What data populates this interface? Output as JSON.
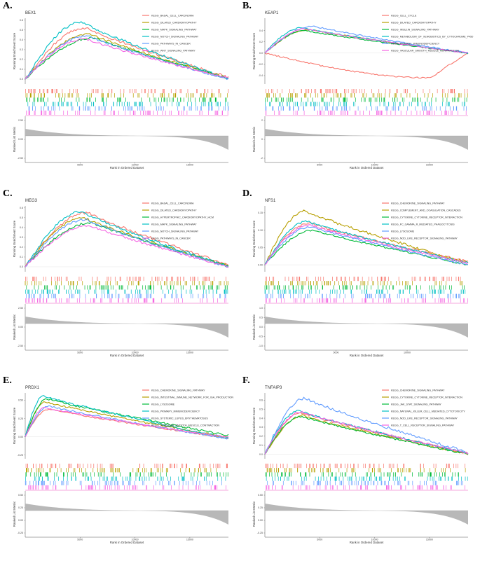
{
  "chart_data": [
    {
      "panel_label": "A.",
      "gene": "BEX1",
      "type": "line",
      "title": "BEX1",
      "ylabel": "Running Enrichment Score",
      "xlabel": "Rank in Ordered Dataset",
      "ylabel_bottom": "Ranked List Metric",
      "ylim": [
        -0.05,
        0.62
      ],
      "y_ticks": [
        "0.6",
        "0.5",
        "0.4",
        "0.3",
        "0.2",
        "0.1",
        "0.0"
      ],
      "metric_ticks": [
        "2.50",
        "0.00",
        "-2.50"
      ],
      "x_ticks": [
        "5000",
        "10000",
        "15000"
      ],
      "series": [
        {
          "name": "KEGG_BASAL_CELL_CARCINOMA",
          "color": "#f8766d",
          "peak": 0.52,
          "peak_x": 0.3,
          "end": 0.02
        },
        {
          "name": "KEGG_DILATED_CARDIOMYOPATHY",
          "color": "#b79f00",
          "peak": 0.46,
          "peak_x": 0.32,
          "end": 0.01
        },
        {
          "name": "KEGG_MAPK_SIGNALING_PATHWAY",
          "color": "#00ba38",
          "peak": 0.42,
          "peak_x": 0.34,
          "end": 0.01
        },
        {
          "name": "KEGG_NOTCH_SIGNALING_PATHWAY",
          "color": "#00bfc4",
          "peak": 0.58,
          "peak_x": 0.28,
          "end": 0.0
        },
        {
          "name": "KEGG_PATHWAYS_IN_CANCER",
          "color": "#619cff",
          "peak": 0.44,
          "peak_x": 0.31,
          "end": 0.0
        },
        {
          "name": "KEGG_WNT_SIGNALING_PATHWAY",
          "color": "#f564e3",
          "peak": 0.41,
          "peak_x": 0.3,
          "end": 0.01
        }
      ]
    },
    {
      "panel_label": "B.",
      "gene": "KEAP1",
      "type": "line",
      "title": "KEAP1",
      "ylabel": "Running Enrichment Score",
      "xlabel": "Rank in Ordered Dataset",
      "ylabel_bottom": "Ranked List Metric",
      "ylim": [
        -0.55,
        0.62
      ],
      "y_ticks": [
        "0.4",
        "0.2",
        "0.0",
        "-0.2",
        "-0.4"
      ],
      "metric_ticks": [
        "2",
        "0",
        "-2"
      ],
      "x_ticks": [
        "5000",
        "10000",
        "15000"
      ],
      "series": [
        {
          "name": "KEGG_CELL_CYCLE",
          "color": "#f8766d",
          "peak": -0.44,
          "peak_x": 0.82,
          "end": 0.0
        },
        {
          "name": "KEGG_DILATED_CARDIOMYOPATHY",
          "color": "#b79f00",
          "peak": 0.42,
          "peak_x": 0.22,
          "end": 0.0
        },
        {
          "name": "KEGG_INSULIN_SIGNALING_PATHWAY",
          "color": "#00ba38",
          "peak": 0.4,
          "peak_x": 0.2,
          "end": 0.0
        },
        {
          "name": "KEGG_METABOLISM_OF_XENOBIOTICS_BY_CYTOCHROME_P450",
          "color": "#00bfc4",
          "peak": 0.45,
          "peak_x": 0.18,
          "end": 0.0
        },
        {
          "name": "KEGG_PRIMARY_IMMUNODEFICIENCY",
          "color": "#619cff",
          "peak": 0.48,
          "peak_x": 0.24,
          "end": 0.0
        },
        {
          "name": "KEGG_VASCULAR_SMOOTH_MUSCLE_CONTRACTION",
          "color": "#f564e3",
          "peak": 0.43,
          "peak_x": 0.2,
          "end": 0.0
        }
      ]
    },
    {
      "panel_label": "C.",
      "gene": "MEG3",
      "type": "line",
      "title": "MEG3",
      "ylabel": "Running Enrichment Score",
      "xlabel": "Rank in Ordered Dataset",
      "ylabel_bottom": "Ranked List Metric",
      "ylim": [
        -0.05,
        0.62
      ],
      "y_ticks": [
        "0.6",
        "0.5",
        "0.4",
        "0.3",
        "0.2",
        "0.1",
        "0.0"
      ],
      "metric_ticks": [
        "2.50",
        "0.00",
        "-2.50"
      ],
      "x_ticks": [
        "5000",
        "10000",
        "15000"
      ],
      "series": [
        {
          "name": "KEGG_BASAL_CELL_CARCINOMA",
          "color": "#f8766d",
          "peak": 0.55,
          "peak_x": 0.31,
          "end": 0.02
        },
        {
          "name": "KEGG_DILATED_CARDIOMYOPATHY",
          "color": "#b79f00",
          "peak": 0.5,
          "peak_x": 0.29,
          "end": 0.01
        },
        {
          "name": "KEGG_HYPERTROPHIC_CARDIOMYOPATHY_HCM",
          "color": "#00ba38",
          "peak": 0.45,
          "peak_x": 0.33,
          "end": 0.01
        },
        {
          "name": "KEGG_MAPK_SIGNALING_PATHWAY",
          "color": "#00bfc4",
          "peak": 0.56,
          "peak_x": 0.28,
          "end": 0.0
        },
        {
          "name": "KEGG_NOTCH_SIGNALING_PATHWAY",
          "color": "#619cff",
          "peak": 0.48,
          "peak_x": 0.3,
          "end": 0.0
        },
        {
          "name": "KEGG_PATHWAYS_IN_CANCER",
          "color": "#f564e3",
          "peak": 0.42,
          "peak_x": 0.32,
          "end": 0.0
        }
      ]
    },
    {
      "panel_label": "D.",
      "gene": "NFS1",
      "type": "line",
      "title": "NFS1",
      "ylabel": "Running Enrichment Score",
      "xlabel": "Rank in Ordered Dataset",
      "ylabel_bottom": "Ranked List Metric",
      "ylim": [
        -0.02,
        0.17
      ],
      "y_ticks": [
        "0.15",
        "0.10",
        "0.05",
        "0.00"
      ],
      "metric_ticks": [
        "1.0",
        "0.5",
        "0.0",
        "-0.5",
        "-1.0"
      ],
      "x_ticks": [
        "5000",
        "10000"
      ],
      "series": [
        {
          "name": "KEGG_CHEMOKINE_SIGNALING_PATHWAY",
          "color": "#f8766d",
          "peak": 0.12,
          "peak_x": 0.22,
          "end": 0.01
        },
        {
          "name": "KEGG_COMPLEMENT_AND_COAGULATION_CASCADES",
          "color": "#b79f00",
          "peak": 0.155,
          "peak_x": 0.2,
          "end": 0.005
        },
        {
          "name": "KEGG_CYTOKINE_CYTOKINE_RECEPTOR_INTERACTION",
          "color": "#00ba38",
          "peak": 0.1,
          "peak_x": 0.24,
          "end": 0.0
        },
        {
          "name": "KEGG_FC_GAMMA_R_MEDIATED_PHAGOCYTOSIS",
          "color": "#00bfc4",
          "peak": 0.125,
          "peak_x": 0.21,
          "end": 0.005
        },
        {
          "name": "KEGG_LYSOSOME",
          "color": "#619cff",
          "peak": 0.11,
          "peak_x": 0.23,
          "end": 0.0
        },
        {
          "name": "KEGG_NOD_LIKE_RECEPTOR_SIGNALING_PATHWAY",
          "color": "#f564e3",
          "peak": 0.115,
          "peak_x": 0.22,
          "end": 0.005
        }
      ]
    },
    {
      "panel_label": "E.",
      "gene": "PRDX1",
      "type": "line",
      "title": "PRDX1",
      "ylabel": "Running Enrichment Score",
      "xlabel": "Rank in Ordered Dataset",
      "ylabel_bottom": "Ranked List Metric",
      "ylim": [
        -0.3,
        0.6
      ],
      "y_ticks": [
        "0.50",
        "0.25",
        "0.00",
        "-0.25"
      ],
      "metric_ticks": [
        "0.50",
        "0.25",
        "0.00",
        "-0.25"
      ],
      "x_ticks": [
        "5000",
        "10000",
        "15000"
      ],
      "series": [
        {
          "name": "KEGG_CHEMOKINE_SIGNALING_PATHWAY",
          "color": "#f8766d",
          "peak": 0.38,
          "peak_x": 0.12,
          "end": -0.02
        },
        {
          "name": "KEGG_INTESTINAL_IMMUNE_NETWORK_FOR_IGA_PRODUCTION",
          "color": "#b79f00",
          "peak": 0.48,
          "peak_x": 0.1,
          "end": -0.01
        },
        {
          "name": "KEGG_LYSOSOME",
          "color": "#00ba38",
          "peak": 0.52,
          "peak_x": 0.11,
          "end": 0.02
        },
        {
          "name": "KEGG_PRIMARY_IMMUNODEFICIENCY",
          "color": "#00bfc4",
          "peak": 0.56,
          "peak_x": 0.09,
          "end": -0.02
        },
        {
          "name": "KEGG_SYSTEMIC_LUPUS_ERYTHEMATOSUS",
          "color": "#619cff",
          "peak": 0.42,
          "peak_x": 0.12,
          "end": -0.03
        },
        {
          "name": "KEGG_VASCULAR_SMOOTH_MUSCLE_CONTRACTION",
          "color": "#f564e3",
          "peak": 0.4,
          "peak_x": 0.1,
          "end": -0.01
        }
      ]
    },
    {
      "panel_label": "F.",
      "gene": "TNFAIP3",
      "type": "line",
      "title": "TNFAIP3",
      "ylabel": "Running Enrichment Score",
      "xlabel": "Rank in Ordered Dataset",
      "ylabel_bottom": "Ranked List Metric",
      "ylim": [
        -0.05,
        0.68
      ],
      "y_ticks": [
        "0.6",
        "0.5",
        "0.4",
        "0.3",
        "0.2",
        "0.1",
        "0.0"
      ],
      "metric_ticks": [
        "0.50",
        "0.25",
        "0.00",
        "-0.25"
      ],
      "x_ticks": [
        "5000",
        "10000",
        "15000"
      ],
      "series": [
        {
          "name": "KEGG_CHEMOKINE_SIGNALING_PATHWAY",
          "color": "#f8766d",
          "peak": 0.46,
          "peak_x": 0.18,
          "end": 0.01
        },
        {
          "name": "KEGG_CYTOKINE_CYTOKINE_RECEPTOR_INTERACTION",
          "color": "#b79f00",
          "peak": 0.43,
          "peak_x": 0.19,
          "end": 0.0
        },
        {
          "name": "KEGG_JAK_STAT_SIGNALING_PATHWAY",
          "color": "#00ba38",
          "peak": 0.42,
          "peak_x": 0.18,
          "end": 0.0
        },
        {
          "name": "KEGG_NATURAL_KILLER_CELL_MEDIATED_CYTOTOXICITY",
          "color": "#00bfc4",
          "peak": 0.48,
          "peak_x": 0.17,
          "end": 0.01
        },
        {
          "name": "KEGG_NOD_LIKE_RECEPTOR_SIGNALING_PATHWAY",
          "color": "#619cff",
          "peak": 0.62,
          "peak_x": 0.2,
          "end": 0.02
        },
        {
          "name": "KEGG_T_CELL_RECEPTOR_SIGNALING_PATHWAY",
          "color": "#f564e3",
          "peak": 0.47,
          "peak_x": 0.18,
          "end": 0.01
        }
      ]
    }
  ]
}
